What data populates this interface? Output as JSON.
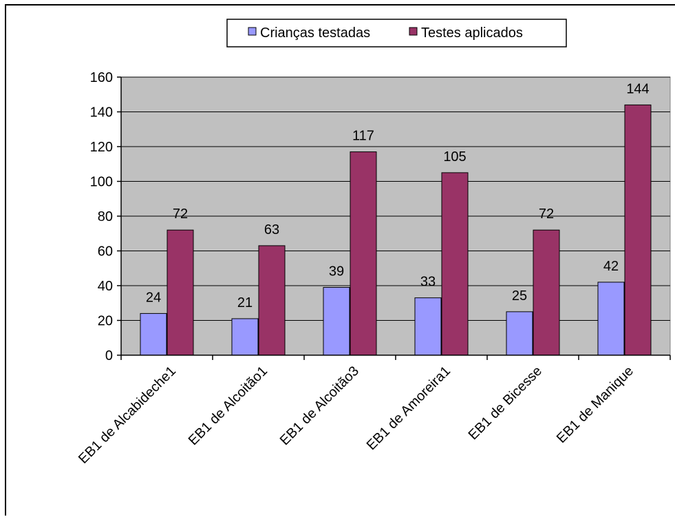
{
  "chart_data": {
    "type": "bar",
    "categories": [
      "EB1 de Alcabideche1",
      "EB1 de Alcoitão1",
      "EB1 de Alcoitão3",
      "EB1 de Amoreira1",
      "EB1 de Bicesse",
      "EB1 de Manique"
    ],
    "series": [
      {
        "name": "Crianças testadas",
        "values": [
          24,
          21,
          39,
          33,
          25,
          42
        ],
        "color": "#9999ff"
      },
      {
        "name": "Testes aplicados",
        "values": [
          72,
          63,
          117,
          105,
          72,
          144
        ],
        "color": "#993366"
      }
    ],
    "ylim": [
      0,
      160
    ],
    "yticks": [
      "0",
      "20",
      "40",
      "60",
      "80",
      "100",
      "120",
      "140",
      "160"
    ],
    "grid": true,
    "legend_position": "top",
    "plot_background": "#c0c0c0",
    "data_labels": true
  }
}
